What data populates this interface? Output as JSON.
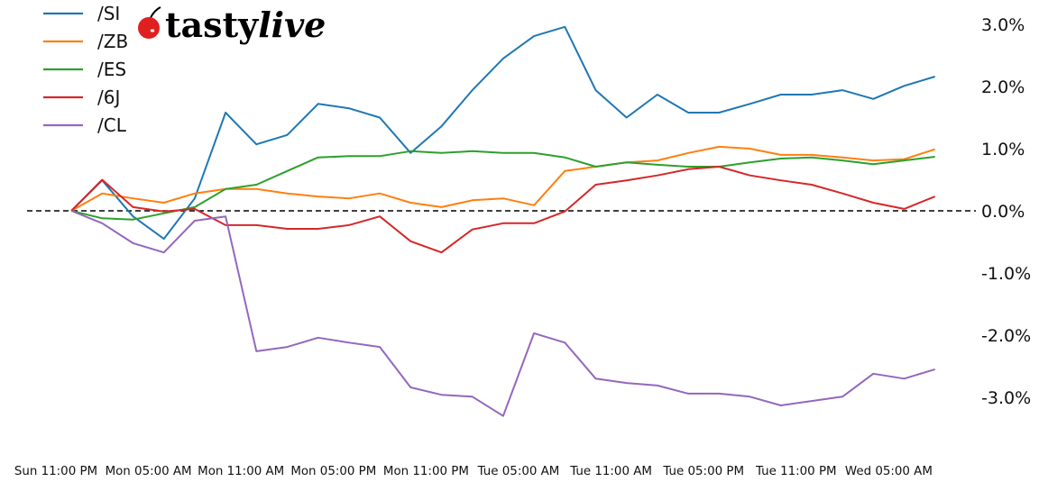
{
  "logo": {
    "text_a": "tasty",
    "text_b": "live",
    "cherry_color": "#e02020"
  },
  "chart_data": {
    "type": "line",
    "title": "",
    "xlabel": "",
    "ylabel": "",
    "ylim": [
      -3.8,
      3.4
    ],
    "y_axis_side": "right",
    "y_ticks": [
      3,
      2,
      1,
      0,
      -1,
      -2,
      -3
    ],
    "y_tick_labels": [
      "3.0%",
      "2.0%",
      "1.0%",
      "0.0%",
      "-1.0%",
      "-2.0%",
      "-3.0%"
    ],
    "x_ticks": [
      "Sun 23:00",
      "Mon 05:00",
      "Mon 11:00",
      "Mon 17:00",
      "Mon 23:00",
      "Tue 05:00",
      "Tue 11:00",
      "Tue 17:00",
      "Tue 23:00",
      "Wed 05:00"
    ],
    "x_tick_labels": [
      "Sun 11:00 PM",
      "Mon 05:00 AM",
      "Mon 11:00 AM",
      "Mon 05:00 PM",
      "Mon 11:00 PM",
      "Tue 05:00 AM",
      "Tue 11:00 AM",
      "Tue 05:00 PM",
      "Tue 11:00 PM",
      "Wed 05:00 AM"
    ],
    "reference_line": {
      "y": 0,
      "style": "dashed",
      "color": "#000000"
    },
    "legend_position": "top-left",
    "grid": false,
    "x": [
      "Mon 00:00",
      "Mon 02:00",
      "Mon 04:00",
      "Mon 06:00",
      "Mon 08:00",
      "Mon 10:00",
      "Mon 12:00",
      "Mon 14:00",
      "Mon 16:00",
      "Mon 18:00",
      "Mon 20:00",
      "Mon 22:00",
      "Tue 00:00",
      "Tue 02:00",
      "Tue 04:00",
      "Tue 06:00",
      "Tue 08:00",
      "Tue 10:00",
      "Tue 12:00",
      "Tue 14:00",
      "Tue 16:00",
      "Tue 18:00",
      "Tue 20:00",
      "Tue 22:00",
      "Wed 00:00",
      "Wed 02:00",
      "Wed 04:00",
      "Wed 06:00",
      "Wed 08:00"
    ],
    "series": [
      {
        "name": "/SI",
        "color": "#1f77b4",
        "values": [
          0,
          0.49,
          -0.09,
          -0.45,
          0.2,
          1.58,
          1.07,
          1.22,
          1.72,
          1.65,
          1.5,
          0.93,
          1.36,
          1.94,
          2.45,
          2.81,
          2.96,
          1.94,
          1.5,
          1.87,
          1.58,
          1.58,
          1.72,
          1.87,
          1.87,
          1.94,
          1.8,
          2.01,
          2.16
        ]
      },
      {
        "name": "/ZB",
        "color": "#ff7f0e",
        "values": [
          0,
          0.28,
          0.2,
          0.13,
          0.28,
          0.35,
          0.35,
          0.28,
          0.23,
          0.2,
          0.28,
          0.13,
          0.06,
          0.17,
          0.2,
          0.09,
          0.64,
          0.71,
          0.78,
          0.81,
          0.93,
          1.03,
          1.0,
          0.9,
          0.9,
          0.86,
          0.81,
          0.83,
          0.99
        ]
      },
      {
        "name": "/ES",
        "color": "#2ca02c",
        "values": [
          0,
          -0.12,
          -0.14,
          -0.04,
          0.06,
          0.35,
          0.42,
          0.64,
          0.86,
          0.88,
          0.88,
          0.96,
          0.93,
          0.96,
          0.93,
          0.93,
          0.86,
          0.71,
          0.78,
          0.74,
          0.71,
          0.71,
          0.78,
          0.84,
          0.86,
          0.81,
          0.75,
          0.81,
          0.87
        ]
      },
      {
        "name": "/6J",
        "color": "#d62728",
        "values": [
          0,
          0.5,
          0.06,
          -0.01,
          0.03,
          -0.23,
          -0.23,
          -0.29,
          -0.29,
          -0.23,
          -0.09,
          -0.49,
          -0.67,
          -0.3,
          -0.2,
          -0.2,
          -0.01,
          0.42,
          0.49,
          0.57,
          0.67,
          0.71,
          0.57,
          0.49,
          0.42,
          0.28,
          0.13,
          0.03,
          0.23
        ]
      },
      {
        "name": "/CL",
        "color": "#9467bd",
        "values": [
          0,
          -0.2,
          -0.52,
          -0.67,
          -0.16,
          -0.09,
          -2.26,
          -2.19,
          -2.04,
          -2.12,
          -2.19,
          -2.84,
          -2.96,
          -2.99,
          -3.3,
          -1.97,
          -2.12,
          -2.7,
          -2.77,
          -2.81,
          -2.94,
          -2.94,
          -2.99,
          -3.13,
          -3.06,
          -2.99,
          -2.62,
          -2.7,
          -2.55
        ]
      }
    ]
  }
}
